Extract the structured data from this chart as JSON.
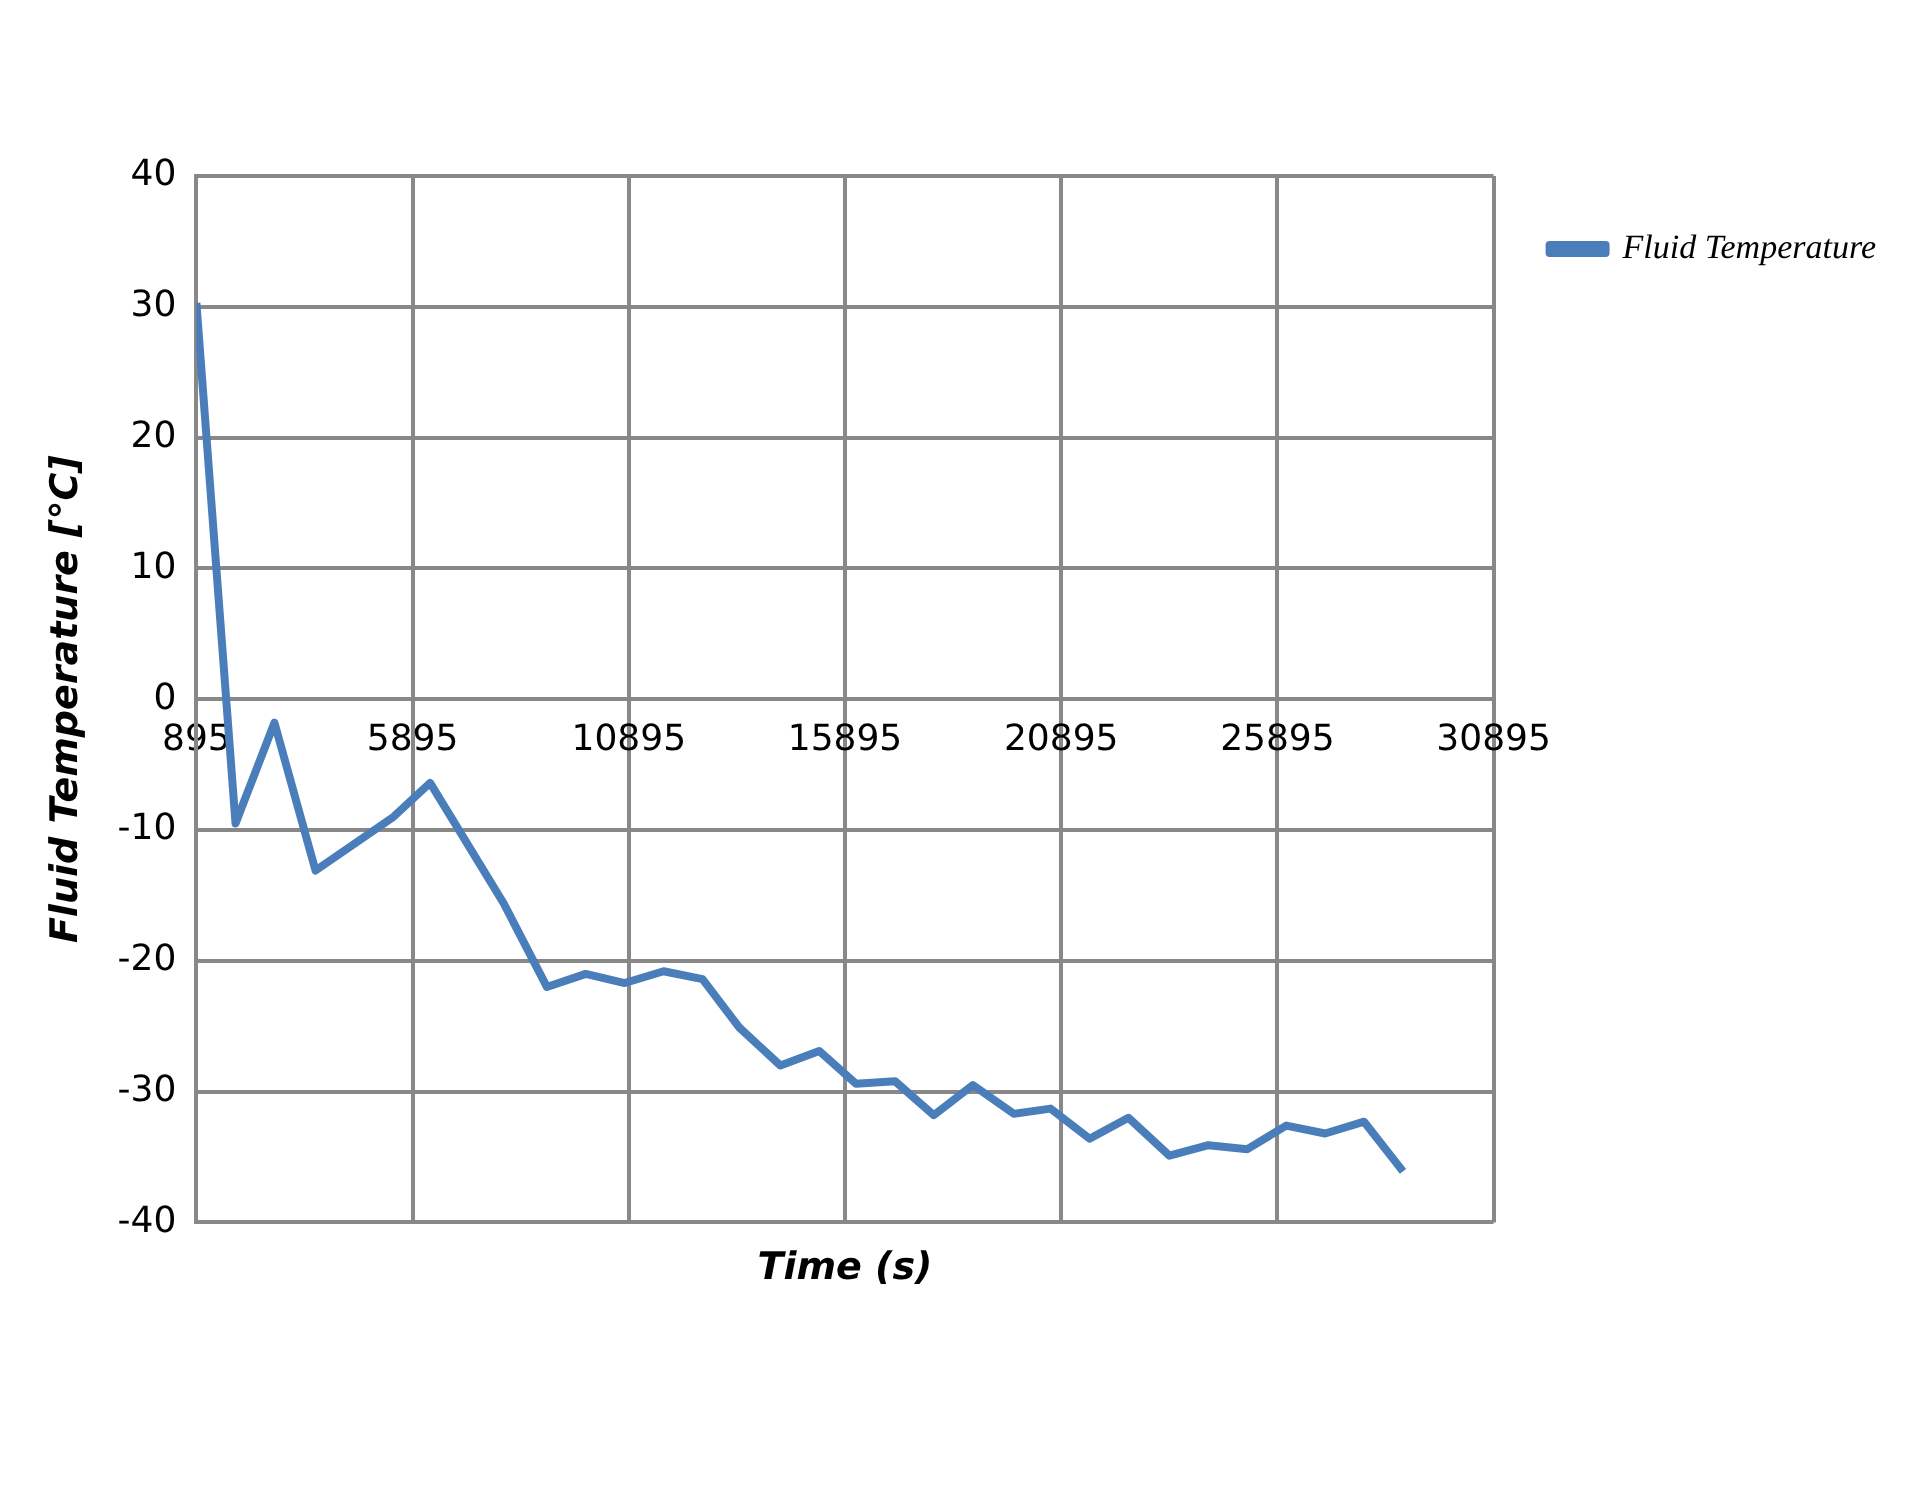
{
  "chart_data": {
    "type": "line",
    "xlabel": "Time (s)",
    "ylabel": "Fluid Temperature [°C]",
    "x": [
      895,
      1800,
      2700,
      3650,
      5450,
      6300,
      8000,
      9000,
      9900,
      10800,
      11700,
      12600,
      13450,
      14400,
      15300,
      16150,
      17050,
      17950,
      18850,
      19800,
      20650,
      21550,
      22450,
      23400,
      24300,
      25200,
      26100,
      27000,
      27900,
      28800
    ],
    "series": [
      {
        "name": "Fluid Temperature",
        "color": "#4a7ebb",
        "values": [
          30.3,
          -9.5,
          -1.8,
          -13.1,
          -9.0,
          -6.4,
          -15.6,
          -22.0,
          -21.0,
          -21.7,
          -20.8,
          -21.4,
          -25.1,
          -28.0,
          -26.9,
          -29.4,
          -29.2,
          -31.8,
          -29.5,
          -31.7,
          -31.3,
          -33.6,
          -32.0,
          -34.9,
          -34.1,
          -34.4,
          -32.6,
          -33.2,
          -32.3,
          -36.1
        ]
      }
    ],
    "xlim": [
      895,
      30895
    ],
    "xticks": [
      895,
      5895,
      10895,
      15895,
      20895,
      25895,
      30895
    ],
    "ylim": [
      -40,
      40
    ],
    "yticks": [
      -40,
      -30,
      -20,
      -10,
      0,
      10,
      20,
      30,
      40
    ],
    "grid": true,
    "legend": "right",
    "marker": "none",
    "line_style": "solid"
  }
}
